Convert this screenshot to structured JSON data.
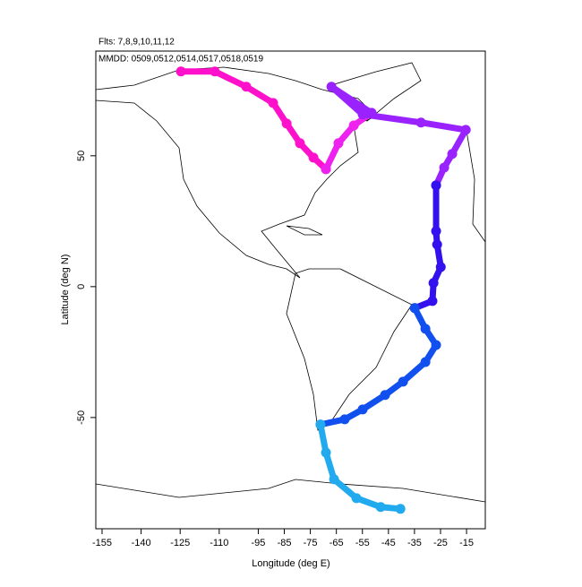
{
  "chart_data": {
    "type": "line",
    "title": "Flts: 7,8,9,10,11,12",
    "subtitle": "MMDD: 0509,0512,0514,0517,0518,0519",
    "x_label": "Longitude (deg E)",
    "y_label": "Latitude (deg N)",
    "xlim": [
      -157.4,
      -7.8
    ],
    "ylim": [
      -92.5,
      90
    ],
    "xticks": [
      -155,
      -140,
      -125,
      -110,
      -95,
      -85,
      -75,
      -65,
      -55,
      -45,
      -35,
      -25,
      -15
    ],
    "yticks": [
      -50,
      0,
      50
    ],
    "series": [
      {
        "color": "#ff11cc",
        "x": [
          -124.7,
          -111.7,
          -99.6,
          -89.3,
          -84.1,
          -79.0,
          -73.8,
          -69.0
        ],
        "values": [
          82.2,
          82.2,
          76.4,
          70.2,
          62.3,
          54.8,
          49.3,
          44.9
        ]
      },
      {
        "color": "#ee22ee",
        "x": [
          -69.0,
          -64.2,
          -58.3,
          -51.5
        ],
        "values": [
          44.9,
          54.8,
          61.6,
          66.4
        ]
      },
      {
        "color": "#9922ff",
        "x": [
          -51.5,
          -66.9,
          -54.9,
          -32.5,
          -15.3,
          -20.5,
          -23.6,
          -26.7
        ],
        "values": [
          66.4,
          76.4,
          65.8,
          62.7,
          59.9,
          50.7,
          45.5,
          38.7
        ]
      },
      {
        "color": "#3311ee",
        "x": [
          -26.7,
          -26.7,
          -26.3,
          -24.9,
          -27.7,
          -28.1,
          -34.9
        ],
        "values": [
          38.7,
          21.2,
          16.1,
          7.5,
          1.4,
          -5.5,
          -8.2
        ]
      },
      {
        "color": "#1150ee",
        "x": [
          -34.9,
          -30.8,
          -26.7,
          -30.8,
          -39.4,
          -46.3,
          -54.9,
          -61.8,
          -71.1
        ],
        "values": [
          -8.2,
          -16.1,
          -22.3,
          -28.8,
          -36.3,
          -41.4,
          -46.9,
          -50.7,
          -52.7
        ]
      },
      {
        "color": "#22aaee",
        "x": [
          -71.1,
          -69.0,
          -65.9,
          -57.3,
          -48.0,
          -40.4
        ],
        "values": [
          -52.7,
          -63.4,
          -73.6,
          -80.8,
          -84.2,
          -84.9
        ]
      }
    ]
  }
}
